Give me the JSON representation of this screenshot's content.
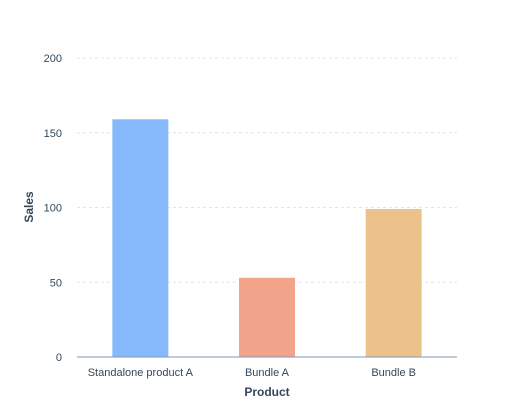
{
  "chart_data": {
    "type": "bar",
    "title": "",
    "xlabel": "Product",
    "ylabel": "Sales",
    "ylim": [
      0,
      200
    ],
    "yticks": [
      0,
      50,
      100,
      150,
      200
    ],
    "grid": true,
    "categories": [
      "Standalone product A",
      "Bundle A",
      "Bundle B"
    ],
    "values": [
      159,
      53,
      99
    ],
    "colors": [
      "#86b9fb",
      "#f2a48b",
      "#ebc38a"
    ]
  }
}
